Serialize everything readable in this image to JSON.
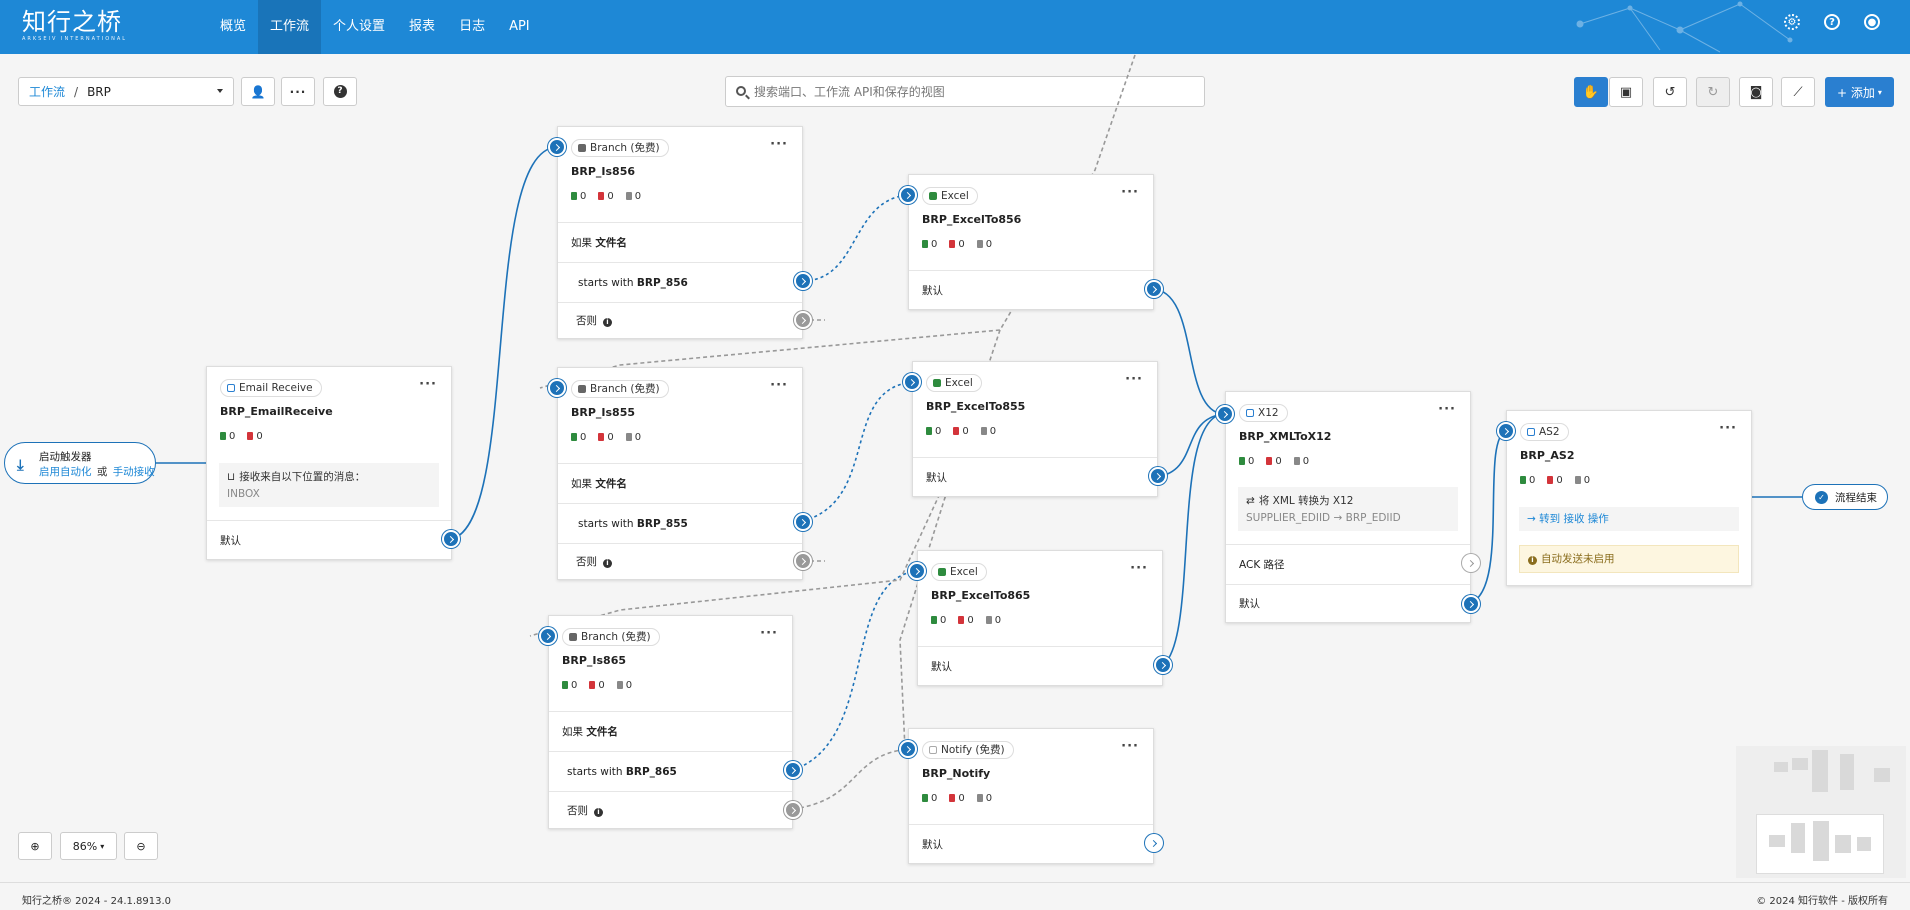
{
  "app": {
    "logo_cn": "知行之桥",
    "logo_en": "ARKSEIV INTERNATIONAL"
  },
  "nav": [
    "概览",
    "工作流",
    "个人设置",
    "报表",
    "日志",
    "API"
  ],
  "toolbar": {
    "breadcrumb_root": "工作流",
    "breadcrumb_sep": "/",
    "breadcrumb_current": "BRP",
    "search_placeholder": "搜索端口、工作流 API和保存的视图",
    "add_label": "+ 添加"
  },
  "trigger": {
    "title": "启动触发器",
    "link1": "启用自动化",
    "or": "或",
    "link2": "手动接收"
  },
  "end_label": "流程结束",
  "nodes": {
    "email": {
      "type": "Email Receive",
      "name": "BRP_EmailReceive",
      "counts": [
        "0",
        "0"
      ],
      "desc_line1": "接收来自以下位置的消息：",
      "desc_line2": "INBOX",
      "default_label": "默认"
    },
    "is856": {
      "type": "Branch (免费)",
      "name": "BRP_Is856",
      "counts": [
        "0",
        "0",
        "0"
      ],
      "if_label": "如果",
      "if_field": "文件名",
      "cond_prefix": "starts with",
      "cond_value": "BRP_856",
      "else_label": "否则"
    },
    "is855": {
      "type": "Branch (免费)",
      "name": "BRP_Is855",
      "counts": [
        "0",
        "0",
        "0"
      ],
      "if_label": "如果",
      "if_field": "文件名",
      "cond_prefix": "starts with",
      "cond_value": "BRP_855",
      "else_label": "否则"
    },
    "is865": {
      "type": "Branch (免费)",
      "name": "BRP_Is865",
      "counts": [
        "0",
        "0",
        "0"
      ],
      "if_label": "如果",
      "if_field": "文件名",
      "cond_prefix": "starts with",
      "cond_value": "BRP_865",
      "else_label": "否则"
    },
    "excel856": {
      "type": "Excel",
      "name": "BRP_ExcelTo856",
      "counts": [
        "0",
        "0",
        "0"
      ],
      "default_label": "默认"
    },
    "excel855": {
      "type": "Excel",
      "name": "BRP_ExcelTo855",
      "counts": [
        "0",
        "0",
        "0"
      ],
      "default_label": "默认"
    },
    "excel865": {
      "type": "Excel",
      "name": "BRP_ExcelTo865",
      "counts": [
        "0",
        "0",
        "0"
      ],
      "default_label": "默认"
    },
    "notify": {
      "type": "Notify (免费)",
      "name": "BRP_Notify",
      "counts": [
        "0",
        "0",
        "0"
      ],
      "default_label": "默认"
    },
    "x12": {
      "type": "X12",
      "name": "BRP_XMLToX12",
      "counts": [
        "0",
        "0",
        "0"
      ],
      "desc_line1": "将 XML 转换为 X12",
      "desc_line2": "SUPPLIER_EDIID → BRP_EDIID",
      "ack_label": "ACK 路径",
      "default_label": "默认"
    },
    "as2": {
      "type": "AS2",
      "name": "BRP_AS2",
      "counts": [
        "0",
        "0",
        "0"
      ],
      "action": "→ 转到 接收 操作",
      "warning": "自动发送未启用"
    }
  },
  "zoom": {
    "level": "86%"
  },
  "footer": {
    "left": "知行之桥® 2024 - 24.1.8913.0",
    "right": "© 2024 知行软件 - 版权所有"
  },
  "colors": {
    "brand": "#1e88d6",
    "port": "#1d72b8",
    "warning_bg": "#fdf6e0"
  }
}
